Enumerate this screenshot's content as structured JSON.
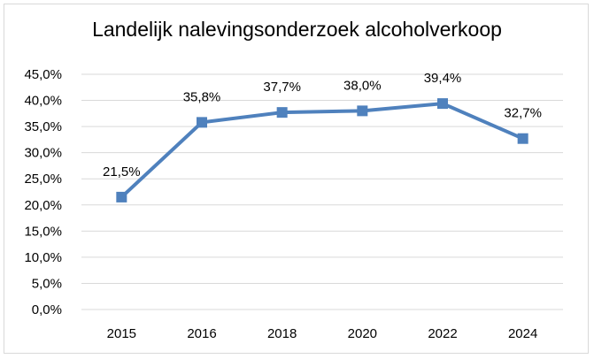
{
  "chart_data": {
    "type": "line",
    "title": "Landelijk nalevingsonderzoek alcoholverkoop",
    "categories": [
      "2015",
      "2016",
      "2018",
      "2020",
      "2022",
      "2024"
    ],
    "series": [
      {
        "values": [
          21.5,
          35.8,
          37.7,
          38.0,
          39.4,
          32.7
        ],
        "data_labels": [
          "21,5%",
          "35,8%",
          "37,7%",
          "38,0%",
          "39,4%",
          "32,7%"
        ],
        "color": "#4f81bd",
        "marker": "square"
      }
    ],
    "ylim": [
      0,
      45
    ],
    "y_ticks": [
      0,
      5,
      10,
      15,
      20,
      25,
      30,
      35,
      40,
      45
    ],
    "y_tick_labels": [
      "0,0%",
      "5,0%",
      "10,0%",
      "15,0%",
      "20,0%",
      "25,0%",
      "30,0%",
      "35,0%",
      "40,0%",
      "45,0%"
    ],
    "grid": true,
    "gridline_color": "#d9d9d9",
    "legend": "none"
  }
}
